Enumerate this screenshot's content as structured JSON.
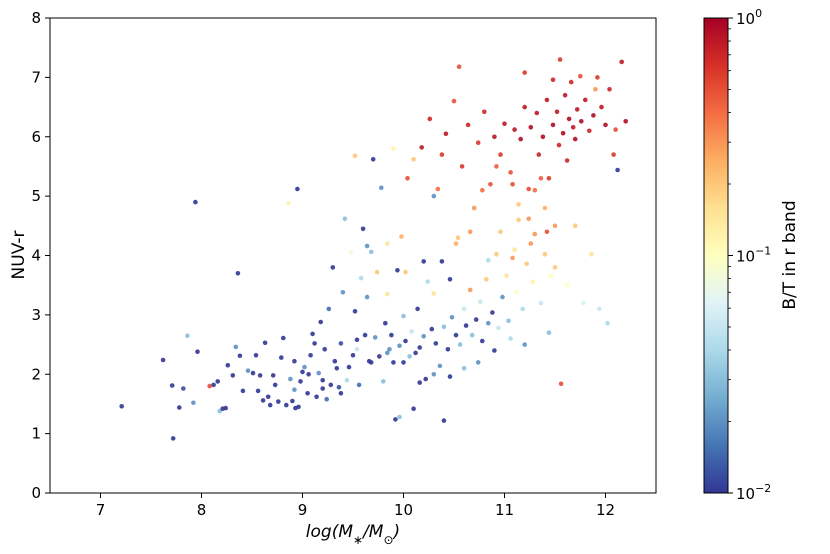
{
  "chart_data": {
    "type": "scatter",
    "xlabel_parts": {
      "pre": "log(M",
      "sub1": "∗",
      "mid": "/M",
      "sub2": "⊙",
      "post": ")"
    },
    "ylabel": "NUV-r",
    "xlim": [
      6.5,
      12.5
    ],
    "ylim": [
      0,
      8
    ],
    "x_ticks": [
      "7",
      "8",
      "9",
      "10",
      "11",
      "12"
    ],
    "y_ticks": [
      "0",
      "1",
      "2",
      "3",
      "4",
      "5",
      "6",
      "7",
      "8"
    ],
    "grid": false,
    "colorbar": {
      "label": "B/T in r band",
      "scale": "log",
      "range": [
        0.01,
        1
      ],
      "ticks": [
        {
          "base": "10",
          "exp": "0",
          "value": 1
        },
        {
          "base": "10",
          "exp": "−1",
          "value": 0.1
        },
        {
          "base": "10",
          "exp": "−2",
          "value": 0.01
        }
      ],
      "colormap": "RdYlBu_r",
      "colors": [
        "#313695",
        "#4575b4",
        "#74add1",
        "#abd9e9",
        "#e0f3f8",
        "#ffffbf",
        "#fee090",
        "#fdae61",
        "#f46d43",
        "#d73027",
        "#a50026"
      ]
    },
    "points": [
      [
        7.21,
        1.46,
        0.01
      ],
      [
        7.62,
        2.24,
        0.01
      ],
      [
        7.72,
        0.92,
        0.01
      ],
      [
        7.71,
        1.81,
        0.01
      ],
      [
        7.78,
        1.44,
        0.01
      ],
      [
        7.82,
        1.76,
        0.012
      ],
      [
        7.86,
        2.65,
        0.03
      ],
      [
        7.92,
        1.52,
        0.02
      ],
      [
        7.94,
        4.9,
        0.01
      ],
      [
        7.96,
        2.38,
        0.01
      ],
      [
        8.08,
        1.8,
        0.5
      ],
      [
        8.12,
        1.82,
        0.01
      ],
      [
        8.16,
        1.88,
        0.01
      ],
      [
        8.18,
        1.38,
        0.03
      ],
      [
        8.21,
        1.42,
        0.01
      ],
      [
        8.24,
        1.43,
        0.01
      ],
      [
        8.26,
        2.15,
        0.01
      ],
      [
        8.31,
        1.98,
        0.01
      ],
      [
        8.34,
        2.46,
        0.02
      ],
      [
        8.36,
        3.7,
        0.01
      ],
      [
        8.38,
        2.31,
        0.01
      ],
      [
        8.41,
        1.72,
        0.01
      ],
      [
        8.46,
        2.06,
        0.02
      ],
      [
        8.51,
        2.02,
        0.01
      ],
      [
        8.54,
        2.32,
        0.01
      ],
      [
        8.56,
        1.72,
        0.01
      ],
      [
        8.58,
        1.98,
        0.01
      ],
      [
        8.61,
        1.56,
        0.01
      ],
      [
        8.63,
        2.53,
        0.01
      ],
      [
        8.66,
        1.62,
        0.01
      ],
      [
        8.68,
        1.48,
        0.01
      ],
      [
        8.71,
        1.98,
        0.01
      ],
      [
        8.73,
        1.82,
        0.01
      ],
      [
        8.76,
        1.54,
        0.01
      ],
      [
        8.79,
        2.28,
        0.01
      ],
      [
        8.81,
        2.61,
        0.01
      ],
      [
        8.84,
        1.48,
        0.01
      ],
      [
        8.86,
        4.88,
        0.12
      ],
      [
        8.88,
        1.92,
        0.02
      ],
      [
        8.9,
        1.55,
        0.01
      ],
      [
        8.92,
        2.22,
        0.01
      ],
      [
        8.93,
        1.43,
        0.01
      ],
      [
        8.95,
        5.12,
        0.01
      ],
      [
        8.96,
        1.45,
        0.01
      ],
      [
        8.98,
        1.88,
        0.01
      ],
      [
        9.0,
        2.04,
        0.01
      ],
      [
        9.02,
        2.12,
        0.02
      ],
      [
        9.05,
        1.68,
        0.01
      ],
      [
        9.08,
        2.32,
        0.01
      ],
      [
        9.1,
        2.68,
        0.01
      ],
      [
        9.12,
        2.52,
        0.01
      ],
      [
        9.14,
        1.62,
        0.01
      ],
      [
        9.16,
        2.02,
        0.02
      ],
      [
        9.18,
        2.88,
        0.01
      ],
      [
        9.2,
        1.76,
        0.01
      ],
      [
        9.22,
        2.42,
        0.01
      ],
      [
        9.24,
        1.58,
        0.015
      ],
      [
        9.26,
        3.1,
        0.015
      ],
      [
        9.28,
        1.82,
        0.01
      ],
      [
        9.3,
        3.8,
        0.01
      ],
      [
        9.32,
        2.22,
        0.01
      ],
      [
        9.34,
        2.1,
        0.01
      ],
      [
        9.36,
        1.78,
        0.012
      ],
      [
        9.38,
        2.52,
        0.012
      ],
      [
        9.4,
        3.38,
        0.02
      ],
      [
        9.42,
        4.62,
        0.03
      ],
      [
        9.44,
        1.9,
        0.04
      ],
      [
        9.46,
        2.12,
        0.01
      ],
      [
        9.48,
        4.05,
        0.08
      ],
      [
        9.5,
        2.32,
        0.01
      ],
      [
        9.52,
        3.06,
        0.01
      ],
      [
        9.54,
        2.42,
        0.05
      ],
      [
        9.56,
        1.82,
        0.015
      ],
      [
        9.58,
        3.62,
        0.04
      ],
      [
        9.6,
        4.45,
        0.01
      ],
      [
        9.62,
        2.66,
        0.01
      ],
      [
        9.64,
        3.3,
        0.02
      ],
      [
        9.66,
        2.22,
        0.01
      ],
      [
        9.68,
        4.06,
        0.03
      ],
      [
        9.7,
        5.62,
        0.01
      ],
      [
        9.72,
        2.62,
        0.02
      ],
      [
        9.74,
        3.72,
        0.2
      ],
      [
        9.76,
        2.3,
        0.01
      ],
      [
        9.78,
        5.14,
        0.02
      ],
      [
        9.8,
        1.88,
        0.03
      ],
      [
        9.82,
        2.86,
        0.01
      ],
      [
        9.84,
        3.35,
        0.15
      ],
      [
        9.86,
        2.42,
        0.02
      ],
      [
        9.88,
        2.66,
        0.01
      ],
      [
        9.9,
        2.2,
        0.01
      ],
      [
        9.92,
        1.24,
        0.01
      ],
      [
        9.94,
        3.75,
        0.01
      ],
      [
        9.96,
        2.48,
        0.02
      ],
      [
        9.98,
        4.32,
        0.25
      ],
      [
        10.0,
        2.98,
        0.03
      ],
      [
        10.02,
        2.56,
        0.01
      ],
      [
        10.04,
        5.3,
        0.5
      ],
      [
        10.06,
        2.3,
        0.03
      ],
      [
        10.08,
        2.72,
        0.05
      ],
      [
        10.1,
        1.42,
        0.01
      ],
      [
        10.12,
        2.36,
        0.01
      ],
      [
        10.14,
        3.1,
        0.01
      ],
      [
        10.16,
        2.45,
        0.01
      ],
      [
        10.18,
        5.82,
        0.8
      ],
      [
        10.2,
        2.64,
        0.02
      ],
      [
        10.22,
        1.92,
        0.01
      ],
      [
        10.24,
        3.56,
        0.04
      ],
      [
        10.26,
        6.3,
        0.7
      ],
      [
        10.28,
        2.76,
        0.01
      ],
      [
        10.3,
        3.36,
        0.15
      ],
      [
        10.32,
        2.52,
        0.01
      ],
      [
        10.34,
        5.12,
        0.4
      ],
      [
        10.36,
        2.14,
        0.02
      ],
      [
        10.38,
        3.9,
        0.01
      ],
      [
        10.4,
        2.8,
        0.03
      ],
      [
        10.42,
        6.05,
        0.8
      ],
      [
        10.44,
        2.42,
        0.01
      ],
      [
        10.46,
        3.6,
        0.01
      ],
      [
        10.48,
        2.96,
        0.02
      ],
      [
        10.5,
        6.6,
        0.5
      ],
      [
        10.52,
        2.66,
        0.01
      ],
      [
        10.54,
        4.3,
        0.2
      ],
      [
        10.56,
        2.5,
        0.03
      ],
      [
        10.58,
        5.5,
        0.6
      ],
      [
        10.6,
        3.1,
        0.05
      ],
      [
        10.62,
        2.82,
        0.01
      ],
      [
        10.64,
        6.2,
        0.7
      ],
      [
        10.66,
        3.42,
        0.3
      ],
      [
        10.68,
        2.66,
        0.03
      ],
      [
        10.7,
        4.8,
        0.3
      ],
      [
        10.72,
        2.92,
        0.01
      ],
      [
        10.74,
        5.9,
        0.6
      ],
      [
        10.76,
        3.22,
        0.05
      ],
      [
        10.78,
        2.56,
        0.01
      ],
      [
        10.8,
        6.42,
        0.7
      ],
      [
        10.82,
        3.6,
        0.2
      ],
      [
        10.84,
        2.86,
        0.02
      ],
      [
        10.86,
        5.2,
        0.5
      ],
      [
        10.88,
        3.04,
        0.01
      ],
      [
        10.9,
        6.0,
        0.8
      ],
      [
        10.92,
        4.02,
        0.2
      ],
      [
        10.94,
        2.78,
        0.05
      ],
      [
        10.96,
        5.7,
        0.6
      ],
      [
        10.98,
        3.3,
        0.02
      ],
      [
        11.0,
        6.22,
        0.8
      ],
      [
        11.02,
        3.66,
        0.15
      ],
      [
        11.04,
        2.9,
        0.03
      ],
      [
        11.06,
        5.4,
        0.5
      ],
      [
        11.08,
        3.96,
        0.3
      ],
      [
        11.1,
        6.12,
        0.8
      ],
      [
        11.12,
        3.38,
        0.1
      ],
      [
        11.14,
        4.6,
        0.2
      ],
      [
        11.16,
        5.96,
        0.9
      ],
      [
        11.18,
        3.1,
        0.04
      ],
      [
        11.2,
        6.5,
        0.8
      ],
      [
        11.22,
        3.86,
        0.2
      ],
      [
        11.24,
        5.12,
        0.5
      ],
      [
        11.26,
        6.16,
        0.9
      ],
      [
        11.28,
        3.56,
        0.12
      ],
      [
        11.3,
        4.36,
        0.3
      ],
      [
        11.32,
        6.4,
        0.8
      ],
      [
        11.34,
        5.7,
        0.7
      ],
      [
        11.36,
        3.2,
        0.05
      ],
      [
        11.38,
        6.0,
        0.9
      ],
      [
        11.4,
        4.02,
        0.2
      ],
      [
        11.42,
        6.62,
        0.8
      ],
      [
        11.44,
        5.3,
        0.6
      ],
      [
        11.46,
        3.66,
        0.1
      ],
      [
        11.48,
        6.2,
        0.9
      ],
      [
        11.5,
        4.5,
        0.3
      ],
      [
        11.52,
        6.42,
        0.8
      ],
      [
        11.54,
        5.86,
        0.7
      ],
      [
        11.56,
        1.84,
        0.5
      ],
      [
        11.58,
        6.06,
        0.9
      ],
      [
        11.6,
        6.7,
        0.8
      ],
      [
        11.62,
        5.6,
        0.7
      ],
      [
        11.64,
        6.3,
        0.9
      ],
      [
        11.66,
        6.92,
        0.7
      ],
      [
        11.68,
        6.16,
        0.8
      ],
      [
        11.7,
        5.96,
        0.9
      ],
      [
        11.72,
        6.46,
        0.8
      ],
      [
        11.76,
        6.26,
        0.9
      ],
      [
        11.8,
        6.62,
        0.8
      ],
      [
        11.84,
        6.1,
        0.7
      ],
      [
        11.88,
        6.36,
        0.9
      ],
      [
        11.92,
        7.0,
        0.6
      ],
      [
        11.96,
        6.5,
        0.8
      ],
      [
        12.0,
        6.2,
        0.9
      ],
      [
        12.04,
        6.8,
        0.7
      ],
      [
        12.08,
        5.7,
        0.6
      ],
      [
        12.12,
        5.44,
        0.01
      ],
      [
        12.16,
        7.26,
        0.8
      ],
      [
        12.2,
        6.26,
        0.9
      ],
      [
        12.1,
        6.12,
        0.5
      ],
      [
        11.9,
        6.8,
        0.3
      ],
      [
        11.55,
        7.3,
        0.6
      ],
      [
        10.55,
        7.18,
        0.5
      ],
      [
        11.2,
        7.08,
        0.6
      ],
      [
        11.75,
        7.02,
        0.5
      ],
      [
        11.48,
        6.96,
        0.7
      ],
      [
        10.3,
        5.0,
        0.02
      ],
      [
        10.2,
        3.9,
        0.01
      ],
      [
        10.02,
        3.72,
        0.2
      ],
      [
        9.84,
        4.2,
        0.15
      ],
      [
        9.64,
        4.16,
        0.02
      ],
      [
        9.52,
        5.68,
        0.2
      ],
      [
        9.9,
        5.8,
        0.12
      ],
      [
        10.1,
        5.62,
        0.2
      ],
      [
        10.96,
        4.4,
        0.2
      ],
      [
        11.1,
        4.1,
        0.15
      ],
      [
        11.26,
        4.2,
        0.3
      ],
      [
        11.4,
        4.8,
        0.25
      ],
      [
        11.5,
        3.8,
        0.2
      ],
      [
        11.62,
        3.5,
        0.1
      ],
      [
        11.7,
        4.5,
        0.2
      ],
      [
        11.78,
        3.2,
        0.06
      ],
      [
        11.86,
        4.02,
        0.15
      ],
      [
        11.94,
        3.1,
        0.05
      ],
      [
        12.02,
        2.86,
        0.04
      ],
      [
        11.44,
        2.7,
        0.03
      ],
      [
        11.2,
        2.5,
        0.02
      ],
      [
        11.06,
        2.6,
        0.04
      ],
      [
        10.9,
        2.4,
        0.01
      ],
      [
        10.74,
        2.2,
        0.02
      ],
      [
        10.6,
        2.1,
        0.03
      ],
      [
        10.46,
        1.96,
        0.01
      ],
      [
        10.3,
        2.0,
        0.02
      ],
      [
        10.16,
        1.86,
        0.01
      ],
      [
        10.0,
        2.2,
        0.01
      ],
      [
        9.84,
        2.36,
        0.02
      ],
      [
        9.68,
        2.2,
        0.01
      ],
      [
        9.54,
        2.58,
        0.01
      ],
      [
        9.38,
        1.68,
        0.01
      ],
      [
        9.2,
        1.9,
        0.01
      ],
      [
        9.06,
        2.0,
        0.01
      ],
      [
        8.92,
        1.74,
        0.02
      ],
      [
        10.4,
        1.22,
        0.01
      ],
      [
        9.96,
        1.28,
        0.03
      ],
      [
        10.84,
        3.92,
        0.04
      ],
      [
        11.14,
        4.86,
        0.2
      ],
      [
        11.3,
        5.1,
        0.4
      ],
      [
        11.36,
        5.3,
        0.45
      ],
      [
        11.42,
        4.4,
        0.5
      ],
      [
        11.24,
        4.62,
        0.3
      ],
      [
        11.08,
        5.2,
        0.5
      ],
      [
        10.92,
        5.5,
        0.45
      ],
      [
        10.78,
        5.1,
        0.4
      ],
      [
        10.66,
        4.4,
        0.3
      ],
      [
        10.52,
        4.2,
        0.25
      ],
      [
        10.38,
        5.7,
        0.6
      ]
    ]
  }
}
